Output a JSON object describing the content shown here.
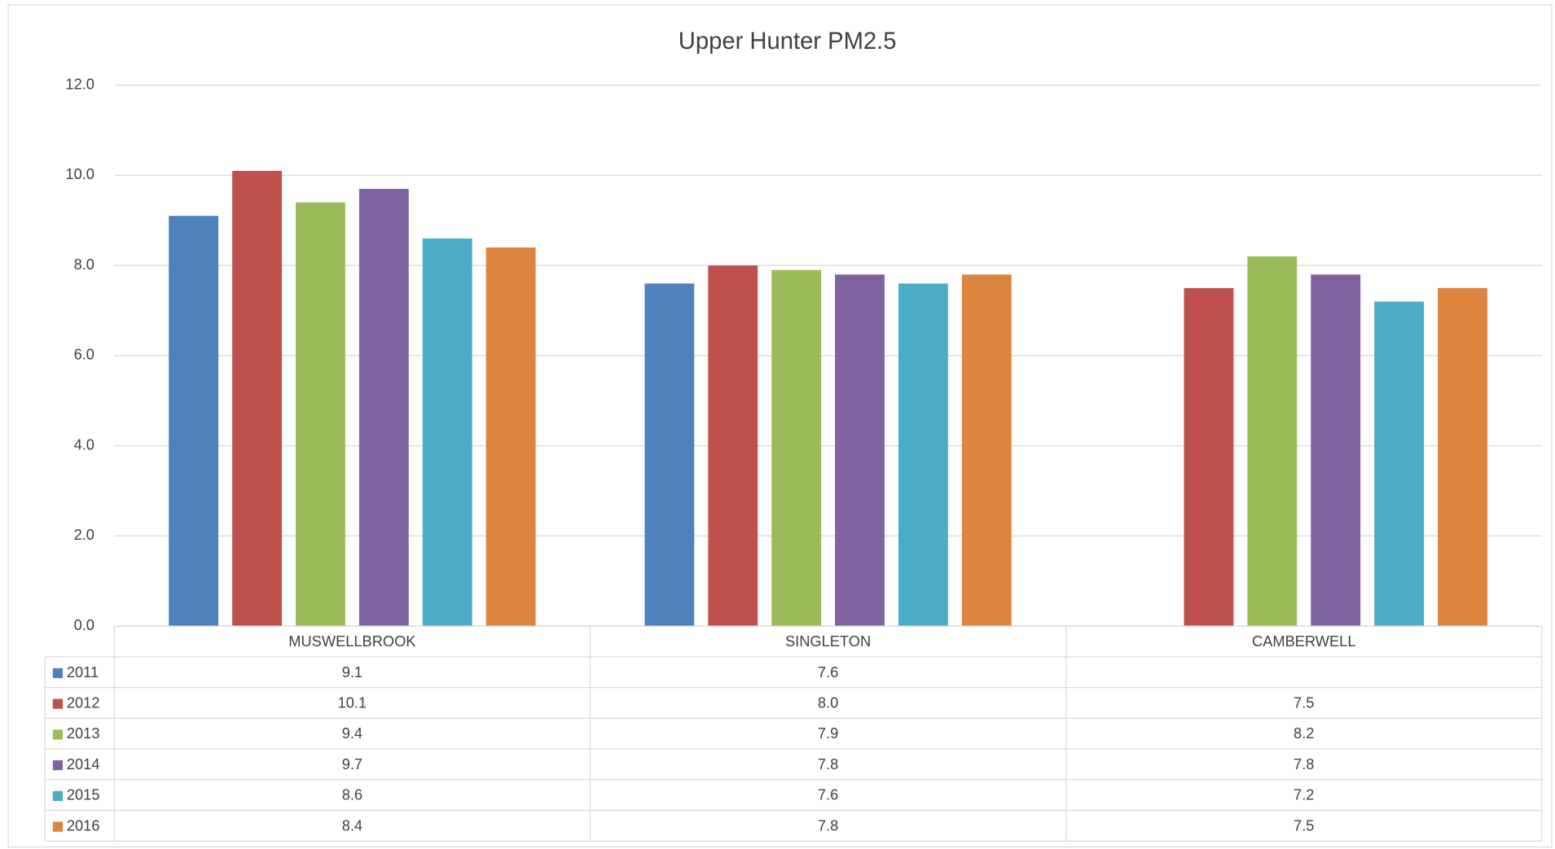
{
  "chart_data": {
    "type": "bar",
    "title": "Upper Hunter PM2.5",
    "categories": [
      "MUSWELLBROOK",
      "SINGLETON",
      "CAMBERWELL"
    ],
    "series": [
      {
        "name": "2011",
        "color": "#4f81bd",
        "values": [
          9.1,
          7.6,
          null
        ],
        "value_labels": [
          "9.1",
          "7.6",
          null
        ]
      },
      {
        "name": "2012",
        "color": "#c0504d",
        "values": [
          10.1,
          8.0,
          7.5
        ],
        "value_labels": [
          "10.1",
          "8.0",
          "7.5"
        ]
      },
      {
        "name": "2013",
        "color": "#9bbb59",
        "values": [
          9.4,
          7.9,
          8.2
        ],
        "value_labels": [
          "9.4",
          "7.9",
          "8.2"
        ]
      },
      {
        "name": "2014",
        "color": "#8064a2",
        "values": [
          9.7,
          7.8,
          7.8
        ],
        "value_labels": [
          "9.7",
          "7.8",
          "7.8"
        ]
      },
      {
        "name": "2015",
        "color": "#4bacc6",
        "values": [
          8.6,
          7.6,
          7.2
        ],
        "value_labels": [
          "8.6",
          "7.6",
          "7.2"
        ]
      },
      {
        "name": "2016",
        "color": "#dd843f",
        "values": [
          8.4,
          7.8,
          7.5
        ],
        "value_labels": [
          "8.4",
          "7.8",
          "7.5"
        ]
      }
    ],
    "ylim": [
      0,
      12
    ],
    "yticks": [
      {
        "value": 0,
        "label": "0.0"
      },
      {
        "value": 2,
        "label": "2.0"
      },
      {
        "value": 4,
        "label": "4.0"
      },
      {
        "value": 6,
        "label": "6.0"
      },
      {
        "value": 8,
        "label": "8.0"
      },
      {
        "value": 10,
        "label": "10.0"
      },
      {
        "value": 12,
        "label": "12.0"
      }
    ],
    "grid": true
  }
}
